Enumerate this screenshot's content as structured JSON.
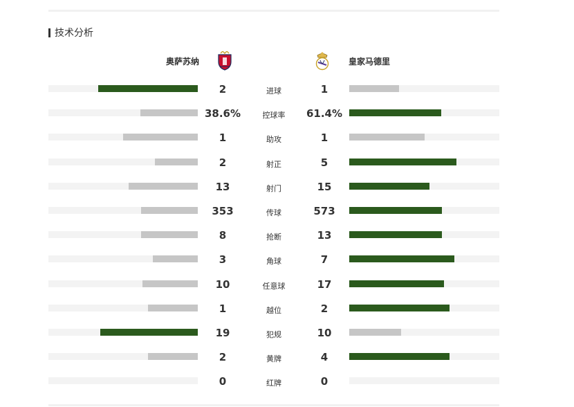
{
  "section": {
    "title": "技术分析"
  },
  "teams": {
    "home": {
      "name": "奥萨苏纳",
      "crest_icon": "osasuna-crest-icon"
    },
    "away": {
      "name": "皇家马德里",
      "crest_icon": "real-madrid-crest-icon"
    }
  },
  "colors": {
    "leader": "#2b5a1d",
    "trailer": "#c6c6c6",
    "track": "#f3f3f3"
  },
  "stats": [
    {
      "label": "进球",
      "home": "2",
      "away": "1",
      "home_share": 0.667,
      "away_share": 0.333,
      "leader": "home"
    },
    {
      "label": "控球率",
      "home": "38.6%",
      "away": "61.4%",
      "home_share": 0.386,
      "away_share": 0.614,
      "leader": "away"
    },
    {
      "label": "助攻",
      "home": "1",
      "away": "1",
      "home_share": 0.5,
      "away_share": 0.5,
      "leader": "none"
    },
    {
      "label": "射正",
      "home": "2",
      "away": "5",
      "home_share": 0.286,
      "away_share": 0.714,
      "leader": "away"
    },
    {
      "label": "射门",
      "home": "13",
      "away": "15",
      "home_share": 0.464,
      "away_share": 0.536,
      "leader": "away"
    },
    {
      "label": "传球",
      "home": "353",
      "away": "573",
      "home_share": 0.381,
      "away_share": 0.619,
      "leader": "away"
    },
    {
      "label": "抢断",
      "home": "8",
      "away": "13",
      "home_share": 0.381,
      "away_share": 0.619,
      "leader": "away"
    },
    {
      "label": "角球",
      "home": "3",
      "away": "7",
      "home_share": 0.3,
      "away_share": 0.7,
      "leader": "away"
    },
    {
      "label": "任意球",
      "home": "10",
      "away": "17",
      "home_share": 0.37,
      "away_share": 0.63,
      "leader": "away"
    },
    {
      "label": "越位",
      "home": "1",
      "away": "2",
      "home_share": 0.333,
      "away_share": 0.667,
      "leader": "away"
    },
    {
      "label": "犯规",
      "home": "19",
      "away": "10",
      "home_share": 0.655,
      "away_share": 0.345,
      "leader": "home"
    },
    {
      "label": "黄牌",
      "home": "2",
      "away": "4",
      "home_share": 0.333,
      "away_share": 0.667,
      "leader": "away"
    },
    {
      "label": "红牌",
      "home": "0",
      "away": "0",
      "home_share": 0,
      "away_share": 0,
      "leader": "none"
    }
  ]
}
